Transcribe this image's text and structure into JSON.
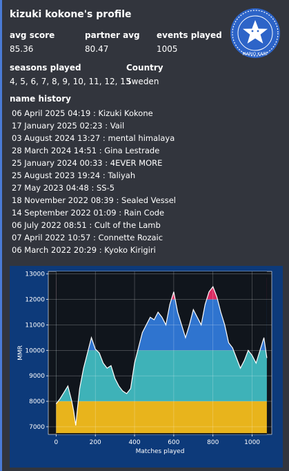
{
  "profile": {
    "title": "kizuki kokone's profile",
    "badge_text": "MARIO KART",
    "accent_color": "#4a7bd6",
    "stats": [
      {
        "label": "avg score",
        "value": "85.36"
      },
      {
        "label": "partner avg",
        "value": "80.47"
      },
      {
        "label": "events played",
        "value": "1005"
      }
    ],
    "seasons": {
      "label": "seasons played",
      "value": "4, 5, 6, 7, 8, 9, 10, 11, 12, 13"
    },
    "country": {
      "label": "Country",
      "value": "Sweden"
    }
  },
  "name_history": {
    "label": "name history",
    "entries": [
      "06 April 2025 04:19 : Kizuki Kokone",
      "17 January 2025 02:23 : Vail",
      "03 August 2024 13:27 : mental himalaya",
      "28 March 2024 14:51 : Gina Lestrade",
      "25 January 2024 00:33 : 4EVER MORE",
      "25 August 2023 19:24 : Taliyah",
      "27 May 2023 04:48 : SS-5",
      "18 November 2022 08:39 : Sealed Vessel",
      "14 September 2022 01:09 : Rain Code",
      "06 July 2022 08:51 : Cult of the Lamb",
      "07 April 2022 10:57 : Connette Rozaic",
      "06 March 2022 20:29 : Kyoko Kirigiri"
    ]
  },
  "chart_data": {
    "type": "line",
    "xlabel": "Matches played",
    "ylabel": "MMR",
    "xlim": [
      -40,
      1100
    ],
    "ylim": [
      6700,
      13100
    ],
    "xticks": [
      0,
      200,
      400,
      600,
      800,
      1000
    ],
    "yticks": [
      7000,
      8000,
      9000,
      10000,
      11000,
      12000,
      13000
    ],
    "grid": true,
    "rank_bands": [
      {
        "from": 12000,
        "to": 12850,
        "color": "#dc2c62"
      },
      {
        "from": 10000,
        "to": 12000,
        "color": "#2f74cf"
      },
      {
        "from": 8000,
        "to": 10000,
        "color": "#3eb2b8"
      },
      {
        "from": 6700,
        "to": 8000,
        "color": "#e8b41c"
      }
    ],
    "series": [
      {
        "x": [
          0,
          20,
          40,
          60,
          80,
          90,
          100,
          110,
          120,
          140,
          160,
          180,
          200,
          220,
          240,
          260,
          280,
          300,
          320,
          340,
          360,
          380,
          400,
          420,
          440,
          460,
          480,
          500,
          520,
          540,
          560,
          580,
          600,
          620,
          640,
          660,
          680,
          700,
          720,
          740,
          760,
          780,
          800,
          820,
          840,
          860,
          880,
          900,
          920,
          940,
          960,
          980,
          1000,
          1020,
          1040,
          1060,
          1075
        ],
        "y": [
          7900,
          8100,
          8350,
          8600,
          8000,
          7600,
          7050,
          7800,
          8500,
          9300,
          9900,
          10500,
          10050,
          9900,
          9500,
          9300,
          9400,
          8900,
          8600,
          8400,
          8300,
          8500,
          9500,
          10100,
          10700,
          11000,
          11300,
          11200,
          11500,
          11300,
          11000,
          11800,
          12300,
          11500,
          11000,
          10500,
          11000,
          11600,
          11300,
          11000,
          11800,
          12300,
          12500,
          12100,
          11500,
          11000,
          10300,
          10100,
          9700,
          9300,
          9600,
          10000,
          9800,
          9500,
          10000,
          10500,
          9700
        ]
      }
    ]
  }
}
